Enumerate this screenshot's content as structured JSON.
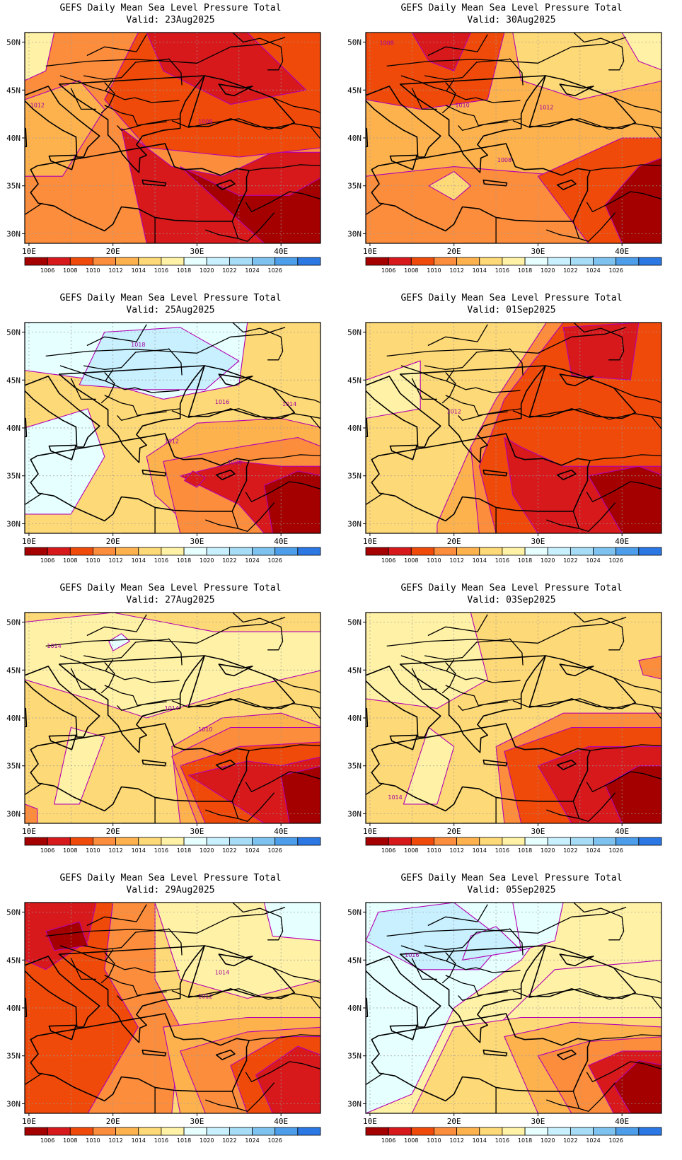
{
  "product_title": "GEFS Daily Mean Sea Level Pressure Total",
  "valid_prefix": "Valid:",
  "lat_labels": [
    "50N",
    "45N",
    "40N",
    "35N",
    "30N"
  ],
  "lon_labels": [
    "10E",
    "20E",
    "30E",
    "40E"
  ],
  "colorbar": {
    "colors": [
      "#a50000",
      "#d7191c",
      "#f04a0a",
      "#fc8d3c",
      "#fdb24e",
      "#fed977",
      "#fff2a6",
      "#e6ffff",
      "#c8f0ff",
      "#a6dcf5",
      "#7ec3f0",
      "#4d9eea",
      "#2b78e4"
    ],
    "labels": [
      "1006",
      "1008",
      "1010",
      "1012",
      "1014",
      "1016",
      "1018",
      "1020",
      "1022",
      "1024",
      "1026"
    ]
  },
  "maps": [
    {
      "valid": "23Aug2025",
      "contour_labels": [
        "1012",
        "1008"
      ],
      "regime": "low-east"
    },
    {
      "valid": "30Aug2025",
      "contour_labels": [
        "1008",
        "1010",
        "1012",
        "1008"
      ],
      "regime": "low-north-east"
    },
    {
      "valid": "25Aug2025",
      "contour_labels": [
        "1018",
        "1016",
        "1014",
        "1012",
        "1008"
      ],
      "regime": "high-north"
    },
    {
      "valid": "01Sep2025",
      "contour_labels": [
        "1012"
      ],
      "regime": "low-east-strong"
    },
    {
      "valid": "27Aug2025",
      "contour_labels": [
        "1014",
        "1014",
        "1010"
      ],
      "regime": "mixed"
    },
    {
      "valid": "03Sep2025",
      "contour_labels": [
        "1014"
      ],
      "regime": "low-southeast"
    },
    {
      "valid": "29Aug2025",
      "contour_labels": [
        "1014",
        "1012"
      ],
      "regime": "low-west"
    },
    {
      "valid": "05Sep2025",
      "contour_labels": [
        "1016"
      ],
      "regime": "high-northwest"
    }
  ]
}
